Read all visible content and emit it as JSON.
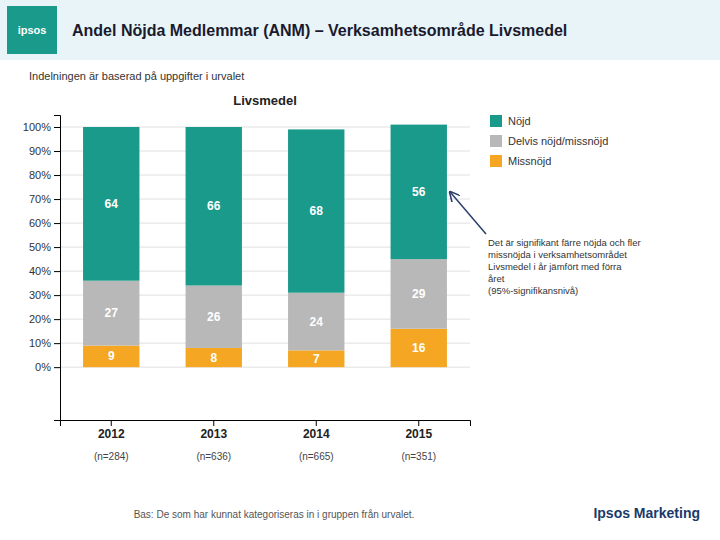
{
  "chart_data": {
    "type": "bar",
    "stacked": true,
    "title": "Andel Nöjda Medlemmar (ANM) – Verksamhetsområde Livsmedel",
    "subtitle": "Indelningen är baserad på uppgifter i urvalet",
    "group_label": "Livsmedel",
    "categories": [
      "2012",
      "2013",
      "2014",
      "2015"
    ],
    "n_labels": [
      "(n=284)",
      "(n=636)",
      "(n=665)",
      "(n=351)"
    ],
    "series": [
      {
        "name": "Missnöjd",
        "color": "#f5a623",
        "values": [
          9,
          8,
          7,
          16
        ]
      },
      {
        "name": "Delvis nöjd/missnöjd",
        "color": "#b8b8b8",
        "values": [
          27,
          26,
          24,
          29
        ]
      },
      {
        "name": "Nöjd",
        "color": "#1a9a8a",
        "values": [
          64,
          66,
          68,
          56
        ]
      }
    ],
    "ylim": [
      -22,
      105
    ],
    "yticks": [
      {
        "value": 0,
        "label": "0%"
      },
      {
        "value": 10,
        "label": "10%"
      },
      {
        "value": 20,
        "label": "20%"
      },
      {
        "value": 30,
        "label": "30%"
      },
      {
        "value": 40,
        "label": "40%"
      },
      {
        "value": 50,
        "label": "50%"
      },
      {
        "value": 60,
        "label": "60%"
      },
      {
        "value": 70,
        "label": "70%"
      },
      {
        "value": 80,
        "label": "80%"
      },
      {
        "value": 90,
        "label": "90%"
      },
      {
        "value": 100,
        "label": "100%"
      }
    ],
    "grid": true,
    "legend": "right",
    "data_labels": true,
    "annotation": "Det är signifikant färre nöjda och fler\nmissnöjda i verksamhetsområdet\nLivsmedel i år jämfört med förra\nåret\n(95%-signifikansnivå)",
    "note": "Bas: De som har kunnat kategoriseras in i gruppen från urvalet.",
    "logo_text": "ipsos",
    "footer": "Ipsos Marketing"
  }
}
